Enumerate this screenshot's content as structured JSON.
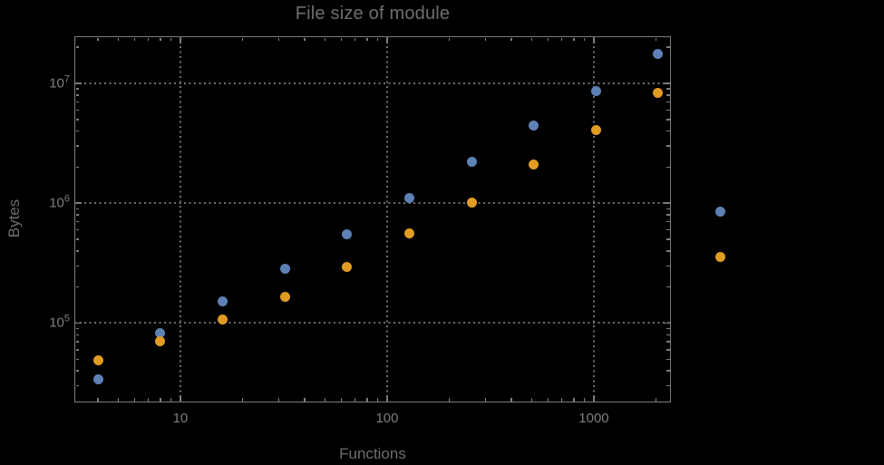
{
  "styles": {
    "background": "#000000",
    "frame_color": "#7d7d7d",
    "grid_color": "#6f6f6f",
    "title_color": "#6e6e6e",
    "tick_label_color": "#7e7e7e",
    "axis_label_color": "#6e6e6e"
  },
  "chart_data": {
    "type": "scatter",
    "title": "File size of module",
    "xlabel": "Functions",
    "ylabel": "Bytes",
    "x_scale": "log",
    "y_scale": "log",
    "grid": "dotted lines at decade ticks, frame ticks on all four edges",
    "legend": "none visible",
    "xlim": [
      3.07,
      2360
    ],
    "ylim": [
      21800,
      24700000
    ],
    "x": [
      4,
      8,
      16,
      32,
      64,
      128,
      256,
      512,
      1024,
      2048,
      4096
    ],
    "series": [
      {
        "name": "blue",
        "color": "#5E81B5",
        "values": [
          34000,
          83000,
          151000,
          282000,
          547000,
          1100000,
          2200000,
          4410000,
          8550000,
          17500000,
          845000
        ]
      },
      {
        "name": "orange",
        "color": "#E19C24",
        "values": [
          48700,
          70000,
          107000,
          167000,
          292000,
          556000,
          1020000,
          2090000,
          4110000,
          8260000,
          354000
        ]
      }
    ],
    "x_ticks": [
      {
        "value": 10,
        "label": "10"
      },
      {
        "value": 100,
        "label": "100"
      },
      {
        "value": 1000,
        "label": "1000"
      }
    ],
    "y_ticks": [
      {
        "value": 100000,
        "base": "10",
        "exp": "5"
      },
      {
        "value": 1000000,
        "base": "10",
        "exp": "6"
      },
      {
        "value": 10000000,
        "base": "10",
        "exp": "7"
      }
    ],
    "note": "last data pair (x=4096) is drawn outside the right frame edge (unclipped)"
  }
}
